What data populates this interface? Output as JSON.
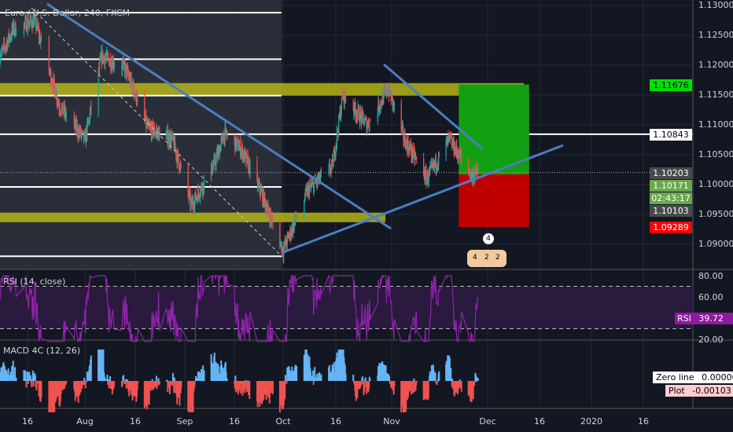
{
  "header": {
    "symbol_title": "Euro / U.S. Dollar, 240, FXCM"
  },
  "colors": {
    "bg": "#131722",
    "up": "#26a69a",
    "down": "#ef5350",
    "trend": "#4a7fc1",
    "zone": "#c8c814",
    "rsi": "#8e24aa",
    "macd_up": "#64b5f6",
    "macd_down": "#ef5350",
    "target": "#11a011",
    "stop": "#c00000"
  },
  "price_axis": {
    "ticks": [
      "1.13000",
      "1.12500",
      "1.12000",
      "1.11500",
      "1.11000",
      "1.10500",
      "1.10000",
      "1.09500",
      "1.09000"
    ]
  },
  "price_tags": [
    {
      "text": "1.11676",
      "bg": "#00e000",
      "fg": "#000000",
      "price": 1.11676
    },
    {
      "text": "1.10843",
      "bg": "#ffffff",
      "fg": "#000000",
      "price": 1.10843
    },
    {
      "text": "1.10203",
      "bg": "#4a4a4a",
      "fg": "#ffffff",
      "price": 1.10203
    },
    {
      "text": "1.10171",
      "bg": "#6aa84f",
      "fg": "#ffffff",
      "price": 1.10171
    },
    {
      "text": "02:43:17",
      "bg": "#6aa84f",
      "fg": "#ffffff",
      "price": 1.09985
    },
    {
      "text": "1.10103",
      "bg": "#4a4a4a",
      "fg": "#ffffff",
      "price": 1.098
    },
    {
      "text": "1.09289",
      "bg": "#ff0000",
      "fg": "#ffffff",
      "price": 1.09289
    }
  ],
  "rsi": {
    "title": "RSI (14, close)",
    "ticks": [
      "80.00",
      "60.00",
      "20.00"
    ],
    "tag_name": "RSI",
    "tag_value": "39.72",
    "upper": 70,
    "lower": 30
  },
  "macd": {
    "title": "MACD 4C (12, 26)",
    "zero_label": "Zero line",
    "zero_value": "0.00000",
    "plot_label": "Plot",
    "plot_value": "-0.00103"
  },
  "time_axis": {
    "ticks": [
      {
        "label": "16",
        "date": "2019-07-16"
      },
      {
        "label": "Aug",
        "date": "2019-08-01"
      },
      {
        "label": "16",
        "date": "2019-08-16"
      },
      {
        "label": "Sep",
        "date": "2019-09-01"
      },
      {
        "label": "16",
        "date": "2019-09-16"
      },
      {
        "label": "Oct",
        "date": "2019-10-01"
      },
      {
        "label": "16",
        "date": "2019-10-16"
      },
      {
        "label": "Nov",
        "date": "2019-11-01"
      },
      {
        "label": "Dec",
        "date": "2019-12-01"
      },
      {
        "label": "16",
        "date": "2019-12-16"
      },
      {
        "label": "2020",
        "date": "2020-01-01"
      },
      {
        "label": "16",
        "date": "2020-01-16"
      }
    ]
  },
  "badges": {
    "events": "4",
    "ideas_a": "4",
    "ideas_b": "2",
    "ideas_c": "2"
  },
  "chart_data": {
    "type": "candlestick",
    "title": "Euro / U.S. Dollar, 240, FXCM",
    "ylim": [
      1.0865,
      1.1315
    ],
    "horizontal_levels": [
      1.1288,
      1.121,
      1.1149,
      1.10843,
      1.0996,
      1.088
    ],
    "zones": [
      {
        "from": 1.1149,
        "to": 1.117
      },
      {
        "from": 1.0937,
        "to": 1.0953
      }
    ],
    "long_position": {
      "entry": 1.10171,
      "target": 1.11676,
      "stop": 1.09289,
      "start": "2019-11-22",
      "end": "2019-12-13"
    },
    "close_path": [
      [
        "2019-07-08",
        1.121
      ],
      [
        "2019-07-12",
        1.126
      ],
      [
        "2019-07-18",
        1.1275
      ],
      [
        "2019-07-25",
        1.113
      ],
      [
        "2019-08-01",
        1.1075
      ],
      [
        "2019-08-06",
        1.1215
      ],
      [
        "2019-08-13",
        1.1195
      ],
      [
        "2019-08-20",
        1.1095
      ],
      [
        "2019-08-28",
        1.1075
      ],
      [
        "2019-09-03",
        1.0965
      ],
      [
        "2019-09-10",
        1.1035
      ],
      [
        "2019-09-13",
        1.1085
      ],
      [
        "2019-09-18",
        1.106
      ],
      [
        "2019-09-24",
        1.099
      ],
      [
        "2019-10-01",
        1.089
      ],
      [
        "2019-10-08",
        1.099
      ],
      [
        "2019-10-15",
        1.103
      ],
      [
        "2019-10-18",
        1.115
      ],
      [
        "2019-10-25",
        1.11
      ],
      [
        "2019-10-31",
        1.116
      ],
      [
        "2019-11-05",
        1.1075
      ],
      [
        "2019-11-12",
        1.101
      ],
      [
        "2019-11-19",
        1.1075
      ],
      [
        "2019-11-26",
        1.1015
      ],
      [
        "2019-11-28",
        1.10203
      ]
    ]
  }
}
